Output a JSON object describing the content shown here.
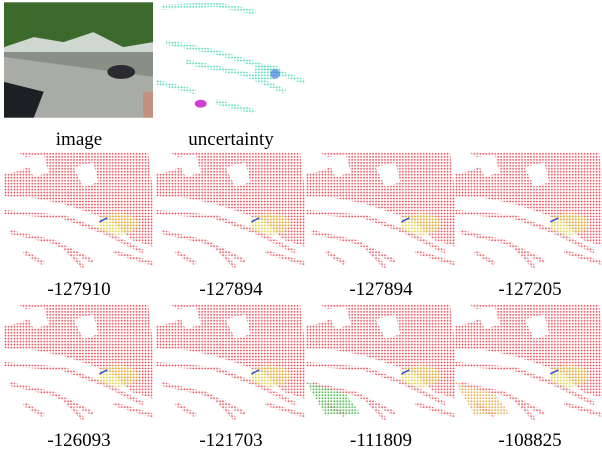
{
  "figure": {
    "inputs": [
      {
        "caption": "image"
      },
      {
        "caption": "uncertainty"
      }
    ],
    "results": [
      {
        "energy": -127910
      },
      {
        "energy": -127894
      },
      {
        "energy": -127894
      },
      {
        "energy": -127205
      },
      {
        "energy": -126093
      },
      {
        "energy": -121703
      },
      {
        "energy": -111809
      },
      {
        "energy": -108825
      }
    ]
  }
}
